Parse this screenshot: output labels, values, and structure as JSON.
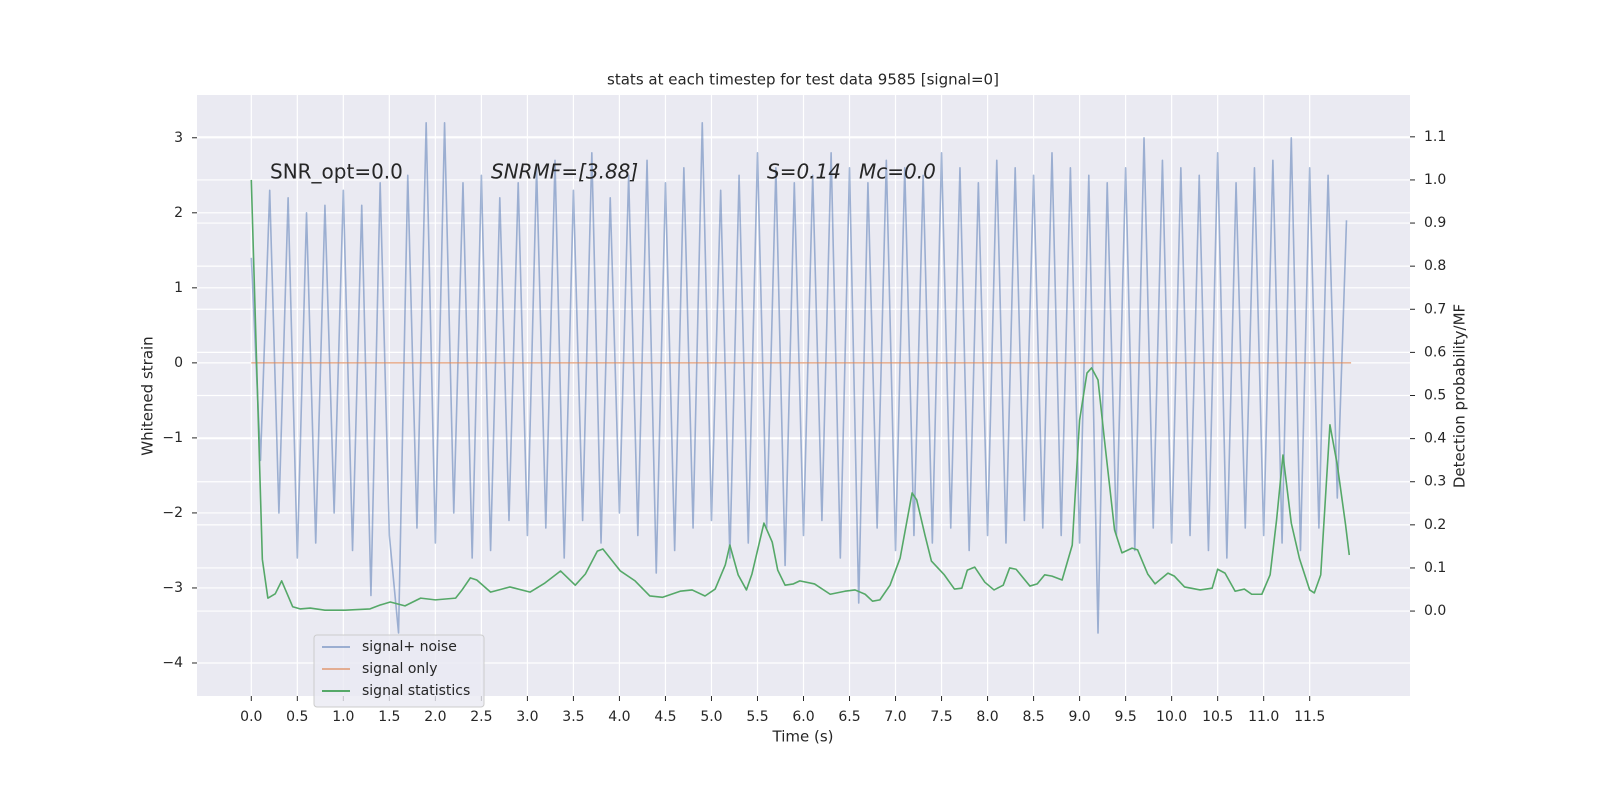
{
  "chart_data": {
    "type": "line",
    "title": "stats at each timestep for test data 9585 [signal=0]",
    "xlabel": "Time (s)",
    "ylabel": "Whitened strain",
    "y2label": "Detection probability/MF",
    "annotations": [
      "SNR_opt=0.0",
      "SNRMF=[3.88]",
      "S=0.14",
      "Mc=0.0"
    ],
    "xlim": [
      -0.59,
      12.59
    ],
    "ylim": [
      -4.44,
      3.57
    ],
    "y2lim": [
      -0.197,
      1.197
    ],
    "xticks": [
      {
        "value": 0,
        "label": "0.0"
      },
      {
        "value": 0.5,
        "label": "0.5"
      },
      {
        "value": 1,
        "label": "1.0"
      },
      {
        "value": 1.5,
        "label": "1.5"
      },
      {
        "value": 2,
        "label": "2.0"
      },
      {
        "value": 2.5,
        "label": "2.5"
      },
      {
        "value": 3,
        "label": "3.0"
      },
      {
        "value": 3.5,
        "label": "3.5"
      },
      {
        "value": 4,
        "label": "4.0"
      },
      {
        "value": 4.5,
        "label": "4.5"
      },
      {
        "value": 5,
        "label": "5.0"
      },
      {
        "value": 5.5,
        "label": "5.5"
      },
      {
        "value": 6,
        "label": "6.0"
      },
      {
        "value": 6.5,
        "label": "6.5"
      },
      {
        "value": 7,
        "label": "7.0"
      },
      {
        "value": 7.5,
        "label": "7.5"
      },
      {
        "value": 8,
        "label": "8.0"
      },
      {
        "value": 8.5,
        "label": "8.5"
      },
      {
        "value": 9,
        "label": "9.0"
      },
      {
        "value": 9.5,
        "label": "9.5"
      },
      {
        "value": 10,
        "label": "10.0"
      },
      {
        "value": 10.5,
        "label": "10.5"
      },
      {
        "value": 11,
        "label": "11.0"
      },
      {
        "value": 11.5,
        "label": "11.5"
      }
    ],
    "yticks": [
      {
        "value": -4,
        "label": "−4"
      },
      {
        "value": -3,
        "label": "−3"
      },
      {
        "value": -2,
        "label": "−2"
      },
      {
        "value": -1,
        "label": "−1"
      },
      0,
      1,
      2,
      3
    ],
    "y2ticks": [
      {
        "value": 0,
        "label": "0.0"
      },
      {
        "value": 0.1,
        "label": "0.1"
      },
      {
        "value": 0.2,
        "label": "0.2"
      },
      {
        "value": 0.3,
        "label": "0.3"
      },
      {
        "value": 0.4,
        "label": "0.4"
      },
      {
        "value": 0.5,
        "label": "0.5"
      },
      {
        "value": 0.6,
        "label": "0.6"
      },
      {
        "value": 0.7,
        "label": "0.7"
      },
      {
        "value": 0.8,
        "label": "0.8"
      },
      {
        "value": 0.9,
        "label": "0.9"
      },
      {
        "value": 1.0,
        "label": "1.0"
      },
      {
        "value": 1.1,
        "label": "1.1"
      }
    ],
    "grid": true,
    "legend": "lower left",
    "series": [
      {
        "name": "signal+ noise",
        "color": "#4c72b0",
        "opacity": 0.5,
        "x": [
          0.0,
          0.1,
          0.2,
          0.3,
          0.4,
          0.5,
          0.6,
          0.7,
          0.8,
          0.9,
          1.0,
          1.1,
          1.2,
          1.3,
          1.4,
          1.5,
          1.6,
          1.7,
          1.8,
          1.9,
          2.0,
          2.1,
          2.2,
          2.3,
          2.4,
          2.5,
          2.6,
          2.7,
          2.8,
          2.9,
          3.0,
          3.1,
          3.2,
          3.3,
          3.4,
          3.5,
          3.6,
          3.7,
          3.8,
          3.9,
          4.0,
          4.1,
          4.2,
          4.3,
          4.4,
          4.5,
          4.6,
          4.7,
          4.8,
          4.9,
          5.0,
          5.1,
          5.2,
          5.3,
          5.4,
          5.5,
          5.6,
          5.7,
          5.8,
          5.9,
          6.0,
          6.1,
          6.2,
          6.3,
          6.4,
          6.5,
          6.6,
          6.7,
          6.8,
          6.9,
          7.0,
          7.1,
          7.2,
          7.3,
          7.4,
          7.5,
          7.6,
          7.7,
          7.8,
          7.9,
          8.0,
          8.1,
          8.2,
          8.3,
          8.4,
          8.5,
          8.6,
          8.7,
          8.8,
          8.9,
          9.0,
          9.1,
          9.2,
          9.3,
          9.4,
          9.5,
          9.6,
          9.7,
          9.8,
          9.9,
          10.0,
          10.1,
          10.2,
          10.3,
          10.4,
          10.5,
          10.6,
          10.7,
          10.8,
          10.9,
          11.0,
          11.1,
          11.2,
          11.3,
          11.4,
          11.5,
          11.6,
          11.7,
          11.8,
          11.9
        ],
        "values": [
          1.4,
          -1.3,
          2.3,
          -2.0,
          2.2,
          -2.6,
          2.0,
          -2.4,
          2.1,
          -2.0,
          2.3,
          -2.5,
          2.1,
          -3.1,
          2.4,
          -2.3,
          -3.6,
          2.5,
          -2.2,
          3.2,
          -2.4,
          3.2,
          -2.0,
          2.4,
          -2.6,
          2.5,
          -2.5,
          2.2,
          -2.1,
          2.4,
          -2.3,
          2.6,
          -2.2,
          2.7,
          -2.6,
          2.3,
          -2.1,
          2.8,
          -2.4,
          2.2,
          -2.0,
          2.5,
          -2.3,
          2.7,
          -2.8,
          2.4,
          -2.5,
          2.6,
          -2.2,
          3.2,
          -2.1,
          2.3,
          -2.6,
          2.5,
          -2.4,
          2.8,
          -2.2,
          2.6,
          -2.7,
          2.4,
          -2.3,
          2.5,
          -2.1,
          2.8,
          -2.6,
          2.6,
          -3.2,
          2.4,
          -2.2,
          2.7,
          -2.5,
          2.6,
          -2.3,
          2.5,
          -2.4,
          2.8,
          -2.2,
          2.6,
          -2.5,
          2.4,
          -2.3,
          2.7,
          -2.4,
          2.6,
          -2.1,
          2.5,
          -2.2,
          2.8,
          -2.3,
          2.6,
          -2.4,
          2.5,
          -3.6,
          2.4,
          -2.3,
          2.6,
          -2.5,
          3.0,
          -2.2,
          2.7,
          -2.4,
          2.6,
          -2.3,
          2.5,
          -2.5,
          2.8,
          -2.6,
          2.4,
          -2.2,
          2.6,
          -2.3,
          2.7,
          -2.4,
          3.0,
          -2.5,
          2.6,
          -2.2,
          2.5,
          -1.8,
          1.9
        ]
      },
      {
        "name": "signal only",
        "color": "#dd8452",
        "opacity": 0.6,
        "x": [
          0.0,
          11.95
        ],
        "values": [
          0,
          0
        ]
      },
      {
        "name": "signal statistics",
        "color": "#55a868",
        "axis": "y2",
        "x": [
          0,
          0.12,
          0.18,
          0.26,
          0.33,
          0.45,
          0.53,
          0.64,
          0.8,
          1.02,
          1.29,
          1.4,
          1.51,
          1.67,
          1.84,
          2.0,
          2.22,
          2.29,
          2.38,
          2.45,
          2.6,
          2.81,
          3.03,
          3.19,
          3.36,
          3.52,
          3.63,
          3.76,
          3.82,
          4.01,
          4.17,
          4.33,
          4.47,
          4.66,
          4.79,
          4.93,
          5.04,
          5.15,
          5.2,
          5.29,
          5.38,
          5.44,
          5.57,
          5.66,
          5.72,
          5.8,
          5.89,
          5.96,
          6.12,
          6.29,
          6.45,
          6.56,
          6.67,
          6.75,
          6.83,
          6.94,
          7.05,
          7.18,
          7.23,
          7.32,
          7.39,
          7.53,
          7.64,
          7.72,
          7.78,
          7.86,
          7.97,
          8.07,
          8.17,
          8.24,
          8.31,
          8.46,
          8.54,
          8.62,
          8.7,
          8.81,
          8.92,
          9.0,
          9.08,
          9.13,
          9.2,
          9.27,
          9.38,
          9.46,
          9.57,
          9.63,
          9.74,
          9.82,
          9.96,
          10.03,
          10.14,
          10.31,
          10.44,
          10.5,
          10.58,
          10.69,
          10.79,
          10.87,
          10.98,
          11.07,
          11.14,
          11.21,
          11.3,
          11.39,
          11.5,
          11.55,
          11.62,
          11.72,
          11.8,
          11.89,
          11.93
        ],
        "values": [
          1.0,
          0.12,
          0.03,
          0.04,
          0.07,
          0.01,
          0.005,
          0.007,
          0.002,
          0.002,
          0.005,
          0.014,
          0.021,
          0.012,
          0.03,
          0.026,
          0.03,
          0.049,
          0.077,
          0.072,
          0.044,
          0.056,
          0.044,
          0.065,
          0.093,
          0.06,
          0.086,
          0.139,
          0.144,
          0.093,
          0.07,
          0.035,
          0.032,
          0.046,
          0.049,
          0.035,
          0.051,
          0.107,
          0.153,
          0.084,
          0.049,
          0.086,
          0.204,
          0.16,
          0.095,
          0.06,
          0.063,
          0.07,
          0.063,
          0.039,
          0.046,
          0.049,
          0.039,
          0.023,
          0.026,
          0.06,
          0.123,
          0.274,
          0.258,
          0.176,
          0.116,
          0.084,
          0.051,
          0.053,
          0.095,
          0.102,
          0.067,
          0.049,
          0.06,
          0.1,
          0.097,
          0.058,
          0.063,
          0.084,
          0.081,
          0.072,
          0.153,
          0.443,
          0.552,
          0.564,
          0.536,
          0.397,
          0.188,
          0.135,
          0.146,
          0.142,
          0.086,
          0.063,
          0.088,
          0.081,
          0.056,
          0.049,
          0.053,
          0.097,
          0.088,
          0.046,
          0.051,
          0.039,
          0.039,
          0.084,
          0.211,
          0.362,
          0.204,
          0.121,
          0.049,
          0.042,
          0.084,
          0.432,
          0.339,
          0.2,
          0.13
        ]
      }
    ]
  }
}
